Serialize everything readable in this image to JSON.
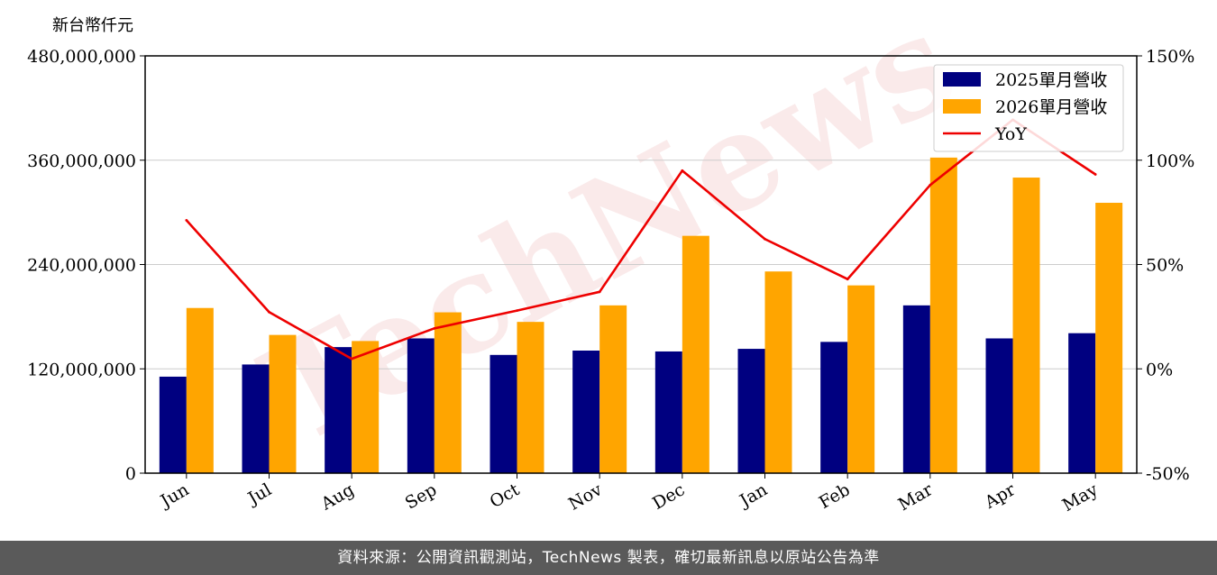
{
  "unit_label": "新台幣仟元",
  "footer_text": "資料來源：公開資訊觀測站，TechNews 製表，確切最新訊息以原站公告為準",
  "watermark_text": "TechNews",
  "chart_data": {
    "type": "bar",
    "categories": [
      "Jun",
      "Jul",
      "Aug",
      "Sep",
      "Oct",
      "Nov",
      "Dec",
      "Jan",
      "Feb",
      "Mar",
      "Apr",
      "May"
    ],
    "series": [
      {
        "name": "2025單月營收",
        "type": "bar",
        "color": "#000080",
        "values": [
          111000000,
          125000000,
          145000000,
          155000000,
          136000000,
          141000000,
          140000000,
          143000000,
          151000000,
          193000000,
          155000000,
          161000000
        ]
      },
      {
        "name": "2026單月營收",
        "type": "bar",
        "color": "#FFA500",
        "values": [
          190000000,
          159000000,
          152000000,
          185000000,
          174000000,
          193000000,
          273000000,
          232000000,
          216000000,
          363000000,
          340000000,
          311000000
        ]
      },
      {
        "name": "YoY",
        "type": "line",
        "axis": "right",
        "color": "#EE0000",
        "values": [
          71.2,
          27.2,
          4.8,
          19.4,
          27.9,
          36.9,
          95.0,
          62.2,
          43.0,
          88.1,
          119.4,
          93.2
        ]
      }
    ],
    "ylim": [
      0,
      480000000
    ],
    "yticks": [
      "0",
      "120,000,000",
      "240,000,000",
      "360,000,000",
      "480,000,000"
    ],
    "y2lim": [
      -50,
      150
    ],
    "y2ticks": [
      "-50%",
      "0%",
      "50%",
      "100%",
      "150%"
    ],
    "grid": "horizontal",
    "legend_position": "top-right"
  }
}
